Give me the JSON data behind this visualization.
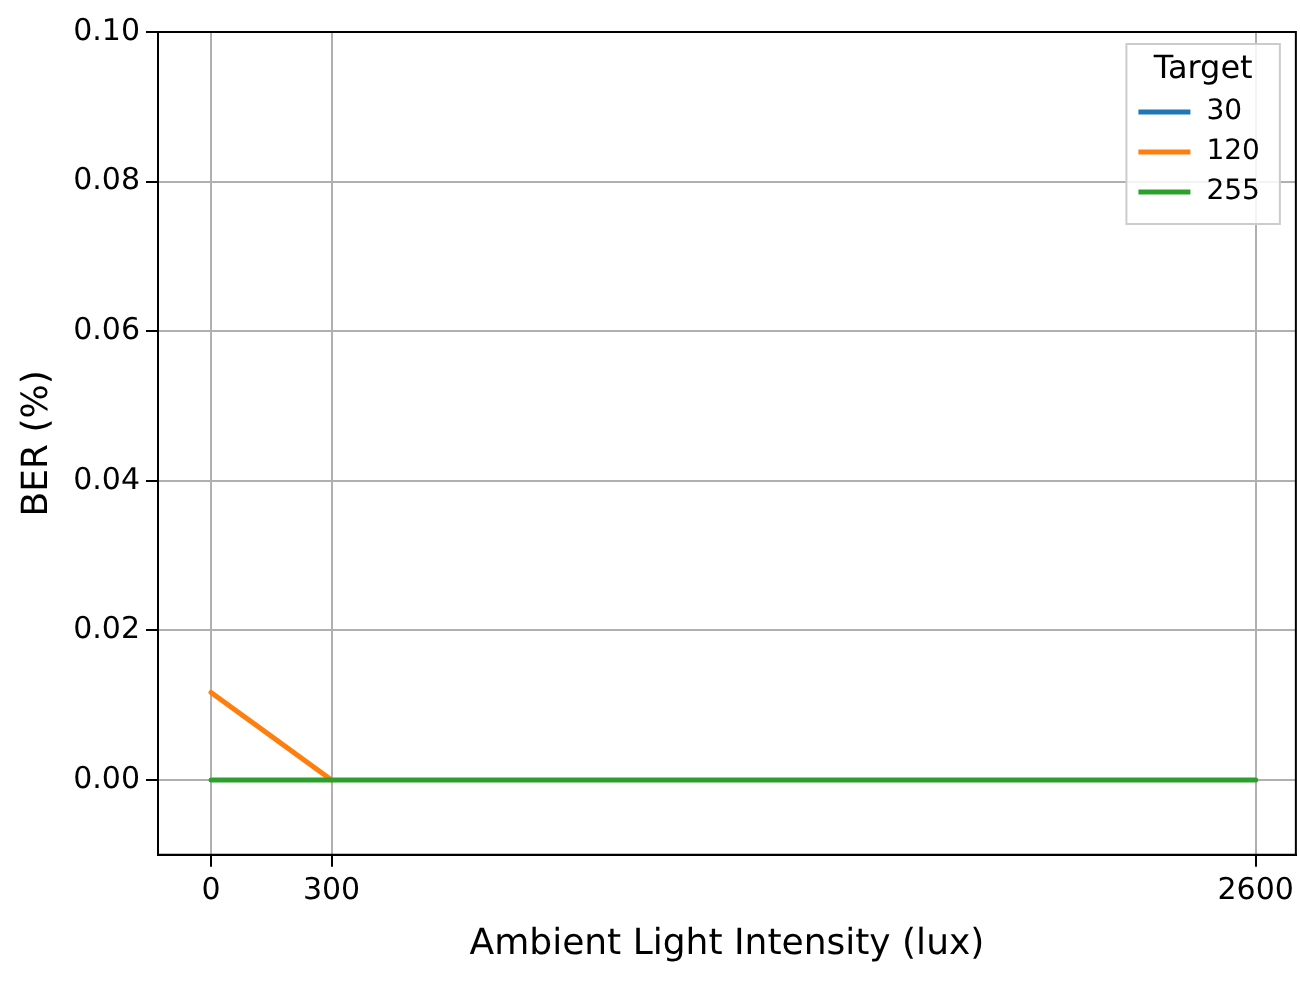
{
  "chart_data": {
    "type": "line",
    "xlabel": "Ambient Light Intensity (lux)",
    "ylabel": "BER (%)",
    "legend_title": "Target",
    "x": [
      0,
      300,
      2600
    ],
    "series": [
      {
        "name": "30",
        "color": "#1f77b4",
        "values": [
          null,
          null,
          null
        ]
      },
      {
        "name": "120",
        "color": "#ff7f0e",
        "values": [
          0.0117,
          0,
          null
        ]
      },
      {
        "name": "255",
        "color": "#2ca02c",
        "values": [
          0,
          0,
          0
        ]
      }
    ],
    "xlim": [
      -132,
      2700
    ],
    "xticks": [
      0,
      300,
      2600
    ],
    "ylim": [
      -0.01,
      0.1
    ],
    "yticks": [
      {
        "value": 0,
        "label": "0.00"
      },
      {
        "value": 0.02,
        "label": "0.02"
      },
      {
        "value": 0.04,
        "label": "0.04"
      },
      {
        "value": 0.06,
        "label": "0.06"
      },
      {
        "value": 0.08,
        "label": "0.08"
      },
      {
        "value": 0.1,
        "label": "0.10"
      }
    ],
    "grid": true,
    "legend": "top right",
    "marker": "none",
    "line_style": "solid"
  }
}
